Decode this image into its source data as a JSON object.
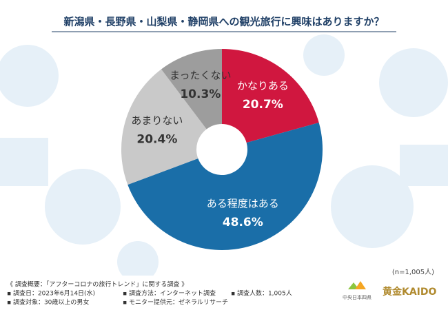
{
  "chart_data": {
    "type": "donut",
    "title": "新潟県・長野県・山梨県・静岡県への観光旅行に興味はありますか？",
    "categories": [
      "かなりある",
      "ある程度はある",
      "あまりない",
      "まったくない"
    ],
    "values": [
      20.7,
      48.6,
      20.4,
      10.3
    ],
    "value_labels": [
      "20.7%",
      "48.6%",
      "20.4%",
      "10.3%"
    ],
    "colors": [
      "#d0173f",
      "#1a6ea8",
      "#c9c9c9",
      "#9d9d9d"
    ],
    "note": "(n=1,005人)"
  },
  "footer": {
    "heading": "《 調査概要：「アフターコロナの旅行トレンド」に関する調査 》",
    "items": [
      "▪ 調査日：2023年6月14日(水)",
      "▪ 調査方法：インターネット調査",
      "▪ 調査人数：1,005人",
      "▪ 調査対象：30歳以上の男女",
      "▪ モニター提供元：ゼネラルリサーチ"
    ],
    "logos": [
      "中央日本四県",
      "黄金KAIDO"
    ]
  }
}
